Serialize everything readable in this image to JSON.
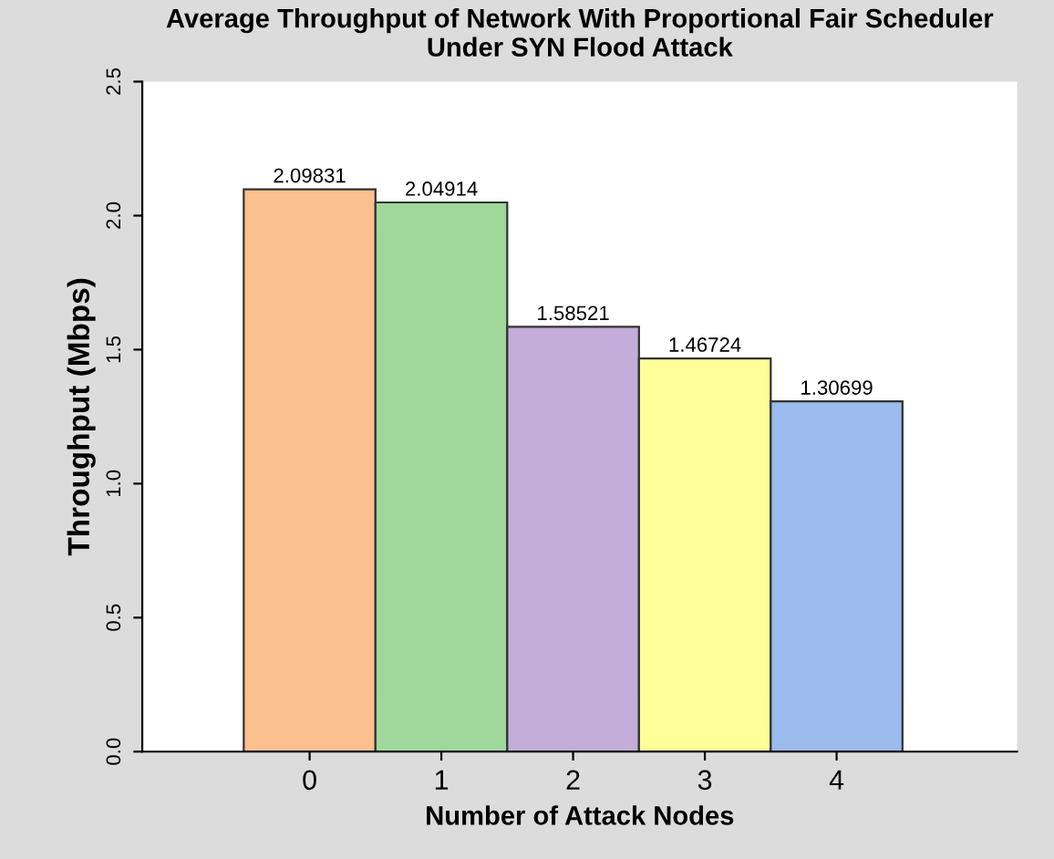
{
  "chart_data": {
    "type": "bar",
    "title": "Average Throughput of Network With Proportional Fair Scheduler\nUnder SYN Flood Attack",
    "xlabel": "Number of Attack Nodes",
    "ylabel": "Throughput (Mbps)",
    "categories": [
      "0",
      "1",
      "2",
      "3",
      "4"
    ],
    "values": [
      2.09831,
      2.04914,
      1.58521,
      1.46724,
      1.30699
    ],
    "colors": [
      "#fbc08f",
      "#a0d89c",
      "#c2aed8",
      "#ffff99",
      "#9bbaee"
    ],
    "ylim": [
      0,
      2.5
    ],
    "yticks": [
      {
        "value": 0,
        "label": "0.0"
      },
      {
        "value": 0.5,
        "label": "0.5"
      },
      {
        "value": 1,
        "label": "1.0"
      },
      {
        "value": 1.5,
        "label": "1.5"
      },
      {
        "value": 2,
        "label": "2.0"
      },
      {
        "value": 2.5,
        "label": "2.5"
      }
    ],
    "data_labels": true,
    "grid": false,
    "legend": false
  }
}
